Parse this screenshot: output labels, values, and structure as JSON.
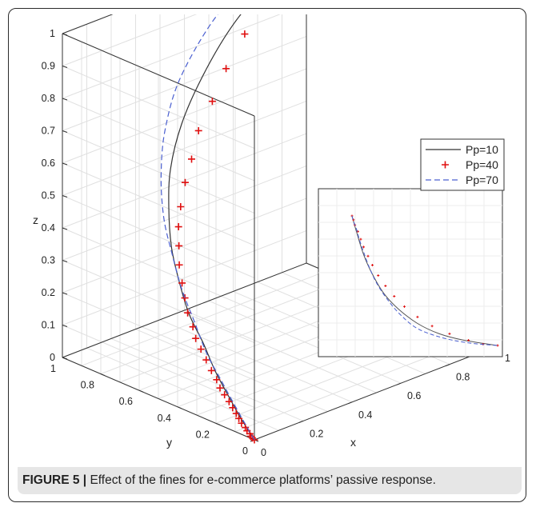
{
  "figure": {
    "caption_label": "FIGURE 5 |",
    "caption_text": " Effect of the fines for e-commerce platforms’ passive response."
  },
  "chart_data": [
    {
      "type": "line3d",
      "xlabel": "x",
      "ylabel": "y",
      "zlabel": "z",
      "xlim": [
        0,
        1
      ],
      "ylim": [
        0,
        1
      ],
      "zlim": [
        0,
        1
      ],
      "x_ticks": [
        "0",
        "0.2",
        "0.4",
        "0.6",
        "0.8",
        "1"
      ],
      "y_ticks": [
        "0",
        "0.2",
        "0.4",
        "0.6",
        "0.8",
        "1"
      ],
      "z_ticks": [
        "0",
        "0.1",
        "0.2",
        "0.3",
        "0.4",
        "0.5",
        "0.6",
        "0.7",
        "0.8",
        "0.9",
        "1"
      ],
      "grid": true,
      "legend_position": "right",
      "series": [
        {
          "name": "Pp=10",
          "style": "solid",
          "color": "#333333",
          "points": [
            [
              0,
              0,
              0
            ],
            [
              0.01,
              0.08,
              0.04
            ],
            [
              0.02,
              0.15,
              0.08
            ],
            [
              0.03,
              0.24,
              0.14
            ],
            [
              0.05,
              0.33,
              0.2
            ],
            [
              0.07,
              0.43,
              0.26
            ],
            [
              0.1,
              0.52,
              0.33
            ],
            [
              0.14,
              0.61,
              0.4
            ],
            [
              0.2,
              0.7,
              0.48
            ],
            [
              0.27,
              0.78,
              0.56
            ],
            [
              0.37,
              0.85,
              0.65
            ],
            [
              0.5,
              0.91,
              0.74
            ],
            [
              0.65,
              0.95,
              0.84
            ],
            [
              0.82,
              0.98,
              0.92
            ],
            [
              1,
              1,
              1
            ]
          ]
        },
        {
          "name": "Pp=40",
          "style": "plus",
          "color": "#e01010",
          "points": [
            [
              0,
              0,
              0
            ],
            [
              0,
              0.01,
              0.003
            ],
            [
              0,
              0.02,
              0.006
            ],
            [
              0.005,
              0.03,
              0.01
            ],
            [
              0.005,
              0.045,
              0.015
            ],
            [
              0.01,
              0.06,
              0.02
            ],
            [
              0.01,
              0.08,
              0.028
            ],
            [
              0.015,
              0.1,
              0.036
            ],
            [
              0.02,
              0.12,
              0.045
            ],
            [
              0.025,
              0.145,
              0.055
            ],
            [
              0.03,
              0.17,
              0.066
            ],
            [
              0.035,
              0.2,
              0.078
            ],
            [
              0.04,
              0.23,
              0.09
            ],
            [
              0.05,
              0.26,
              0.105
            ],
            [
              0.06,
              0.3,
              0.12
            ],
            [
              0.07,
              0.34,
              0.14
            ],
            [
              0.08,
              0.38,
              0.16
            ],
            [
              0.09,
              0.42,
              0.18
            ],
            [
              0.11,
              0.46,
              0.2
            ],
            [
              0.12,
              0.5,
              0.23
            ],
            [
              0.14,
              0.54,
              0.26
            ],
            [
              0.16,
              0.58,
              0.29
            ],
            [
              0.18,
              0.62,
              0.33
            ],
            [
              0.21,
              0.66,
              0.37
            ],
            [
              0.24,
              0.7,
              0.41
            ],
            [
              0.28,
              0.74,
              0.45
            ],
            [
              0.33,
              0.78,
              0.5
            ],
            [
              0.38,
              0.81,
              0.55
            ],
            [
              0.44,
              0.85,
              0.61
            ],
            [
              0.52,
              0.88,
              0.67
            ],
            [
              0.6,
              0.91,
              0.74
            ],
            [
              0.7,
              0.94,
              0.81
            ],
            [
              0.79,
              0.96,
              0.87
            ],
            [
              0.86,
              0.97,
              0.91
            ],
            [
              0.92,
              0.98,
              0.95
            ],
            [
              0.96,
              0.99,
              0.975
            ],
            [
              1,
              1,
              1
            ]
          ]
        },
        {
          "name": "Pp=70",
          "style": "dashed",
          "color": "#4a5fd0",
          "points": [
            [
              0,
              0,
              0
            ],
            [
              0.01,
              0.06,
              0.03
            ],
            [
              0.02,
              0.13,
              0.07
            ],
            [
              0.03,
              0.21,
              0.12
            ],
            [
              0.04,
              0.3,
              0.18
            ],
            [
              0.06,
              0.39,
              0.25
            ],
            [
              0.08,
              0.48,
              0.32
            ],
            [
              0.11,
              0.57,
              0.4
            ],
            [
              0.14,
              0.65,
              0.48
            ],
            [
              0.2,
              0.74,
              0.57
            ],
            [
              0.28,
              0.82,
              0.67
            ],
            [
              0.4,
              0.89,
              0.78
            ],
            [
              0.6,
              0.95,
              0.9
            ],
            [
              0.8,
              0.98,
              0.96
            ],
            [
              1,
              1,
              1
            ]
          ]
        }
      ]
    },
    {
      "type": "line",
      "inset": true,
      "xlabel": "",
      "ylabel": "",
      "grid": true,
      "series": [
        {
          "name": "Pp=10",
          "style": "solid",
          "color": "#555555",
          "points": [
            [
              0,
              0
            ],
            [
              0.03,
              0.12
            ],
            [
              0.08,
              0.3
            ],
            [
              0.14,
              0.45
            ],
            [
              0.22,
              0.6
            ],
            [
              0.32,
              0.72
            ],
            [
              0.45,
              0.83
            ],
            [
              0.6,
              0.91
            ],
            [
              0.77,
              0.96
            ],
            [
              1,
              1
            ]
          ]
        },
        {
          "name": "Pp=40",
          "style": "plus",
          "color": "#e01010",
          "points": [
            [
              0,
              0
            ],
            [
              0.01,
              0.03
            ],
            [
              0.02,
              0.07
            ],
            [
              0.04,
              0.12
            ],
            [
              0.06,
              0.18
            ],
            [
              0.08,
              0.24
            ],
            [
              0.11,
              0.31
            ],
            [
              0.14,
              0.38
            ],
            [
              0.18,
              0.46
            ],
            [
              0.23,
              0.54
            ],
            [
              0.29,
              0.62
            ],
            [
              0.36,
              0.7
            ],
            [
              0.45,
              0.78
            ],
            [
              0.55,
              0.85
            ],
            [
              0.67,
              0.91
            ],
            [
              0.8,
              0.96
            ],
            [
              0.9,
              0.99
            ],
            [
              1,
              1
            ]
          ]
        },
        {
          "name": "Pp=70",
          "style": "dashed",
          "color": "#4a5fd0",
          "points": [
            [
              0,
              0
            ],
            [
              0.01,
              0.04
            ],
            [
              0.03,
              0.1
            ],
            [
              0.05,
              0.18
            ],
            [
              0.08,
              0.28
            ],
            [
              0.12,
              0.4
            ],
            [
              0.17,
              0.52
            ],
            [
              0.24,
              0.64
            ],
            [
              0.33,
              0.76
            ],
            [
              0.45,
              0.87
            ],
            [
              0.62,
              0.94
            ],
            [
              0.8,
              0.98
            ],
            [
              1,
              1
            ]
          ]
        }
      ]
    }
  ]
}
